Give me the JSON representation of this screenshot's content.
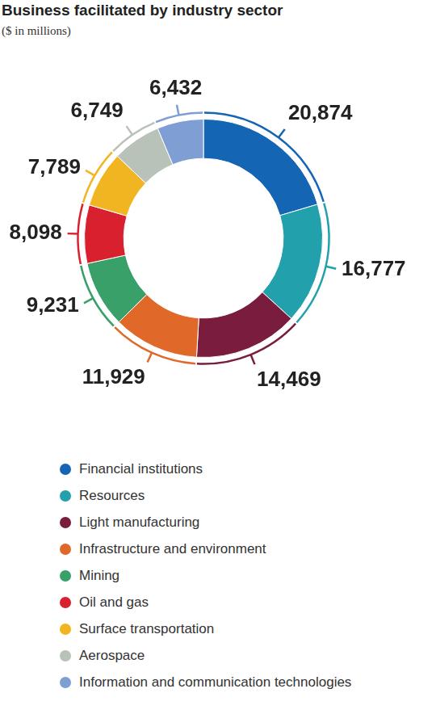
{
  "chart_data": {
    "type": "doughnut",
    "title": "Business facilitated by industry sector",
    "subtitle": "($ in millions)",
    "categories": [
      "Financial institutions",
      "Resources",
      "Light manufacturing",
      "Infrastructure and environment",
      "Mining",
      "Oil and gas",
      "Surface transportation",
      "Aerospace",
      "Information and communication technologies"
    ],
    "values": [
      20874,
      16777,
      14469,
      11929,
      9231,
      8098,
      7789,
      6749,
      6432
    ],
    "value_labels": [
      "20,874",
      "16,777",
      "14,469",
      "11,929",
      "9,231",
      "8,098",
      "7,789",
      "6,749",
      "6,432"
    ],
    "colors": [
      "#1565b5",
      "#22a0ac",
      "#7a1c3e",
      "#e0692a",
      "#3aa06a",
      "#d8202e",
      "#f2b522",
      "#b8c2b8",
      "#7f9fd4"
    ],
    "data_labels": true,
    "legend": "bottom"
  }
}
